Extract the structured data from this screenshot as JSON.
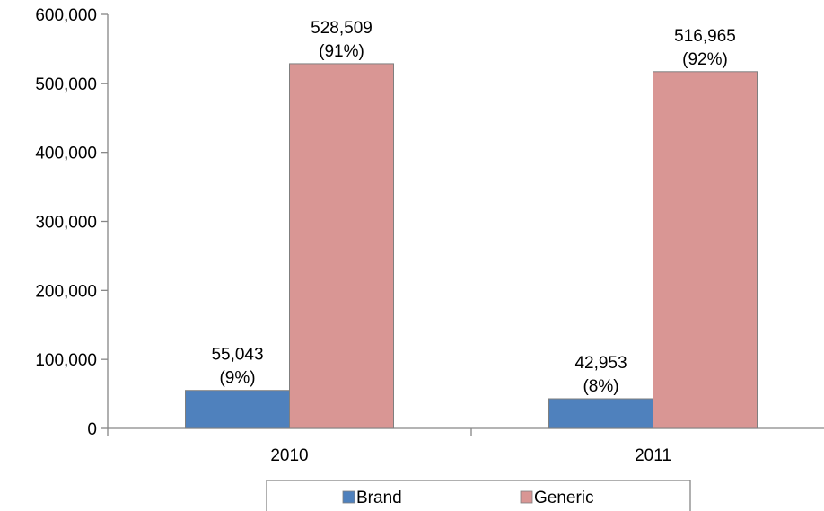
{
  "chart_data": {
    "type": "bar",
    "categories": [
      "2010",
      "2011"
    ],
    "series": [
      {
        "name": "Brand",
        "color": "#4F81BD",
        "values": [
          55043,
          42953
        ],
        "labels": [
          [
            "55,043",
            "(9%)"
          ],
          [
            "42,953",
            "(8%)"
          ]
        ]
      },
      {
        "name": "Generic",
        "color": "#D99694",
        "values": [
          528509,
          516965
        ],
        "labels": [
          [
            "528,509",
            "(91%)"
          ],
          [
            "516,965",
            "(92%)"
          ]
        ]
      }
    ],
    "ylim": [
      0,
      600000
    ],
    "yticks": [
      0,
      100000,
      200000,
      300000,
      400000,
      500000,
      600000
    ],
    "ytick_labels": [
      "0",
      "100,000",
      "200,000",
      "300,000",
      "400,000",
      "500,000",
      "600,000"
    ],
    "xlabel": "",
    "ylabel": "",
    "grid": false,
    "legend_position": "bottom"
  }
}
